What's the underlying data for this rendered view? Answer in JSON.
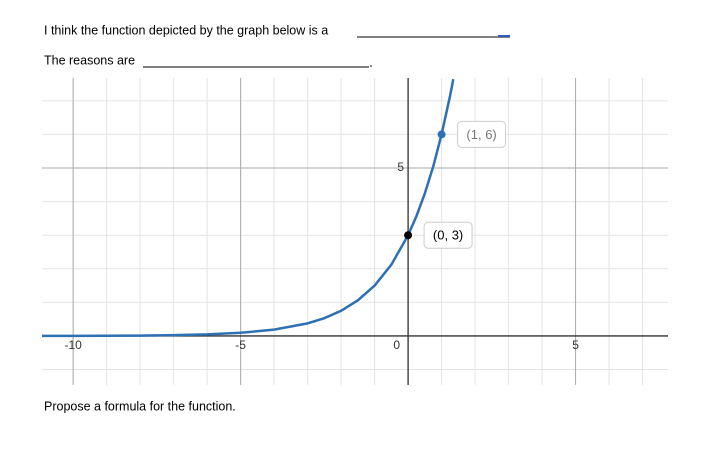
{
  "document": {
    "line1": "I think the function depicted by the graph below is a",
    "line2": "The reasons are",
    "line3": "Propose a formula for the function."
  },
  "chart_data": {
    "type": "line",
    "x": [
      -11,
      -10,
      -9,
      -8,
      -7,
      -6,
      -5,
      -4,
      -3,
      -2.5,
      -2,
      -1.5,
      -1,
      -0.5,
      0,
      0.25,
      0.5,
      0.75,
      1,
      1.25,
      1.35
    ],
    "series": [
      {
        "color": "#2d70b3",
        "values": [
          0.0015,
          0.0029,
          0.0059,
          0.0117,
          0.0234,
          0.0469,
          0.094,
          0.188,
          0.375,
          0.53,
          0.75,
          1.061,
          1.5,
          2.121,
          3,
          3.568,
          4.243,
          5.045,
          6,
          7.135,
          7.647
        ]
      }
    ],
    "points": [
      {
        "x": 0,
        "y": 3,
        "label": "(0, 3)",
        "color": "#000000",
        "label_color": "#000000"
      },
      {
        "x": 1,
        "y": 6,
        "label": "(1, 6)",
        "color": "#2d70b3",
        "label_color": "#777777"
      }
    ],
    "xlim": [
      -10.93,
      7.76
    ],
    "ylim": [
      -1.46,
      7.68
    ],
    "xticks": [
      -10,
      -5,
      0,
      5
    ],
    "yticks": [
      0,
      5
    ],
    "x_minor_grid": [
      -10,
      -9,
      -8,
      -7,
      -6,
      -5,
      -4,
      -3,
      -2,
      -1,
      0,
      1,
      2,
      3,
      4,
      5,
      6,
      7
    ],
    "y_minor_grid": [
      -1,
      0,
      1,
      2,
      3,
      4,
      5,
      6,
      7
    ],
    "grid": true
  }
}
